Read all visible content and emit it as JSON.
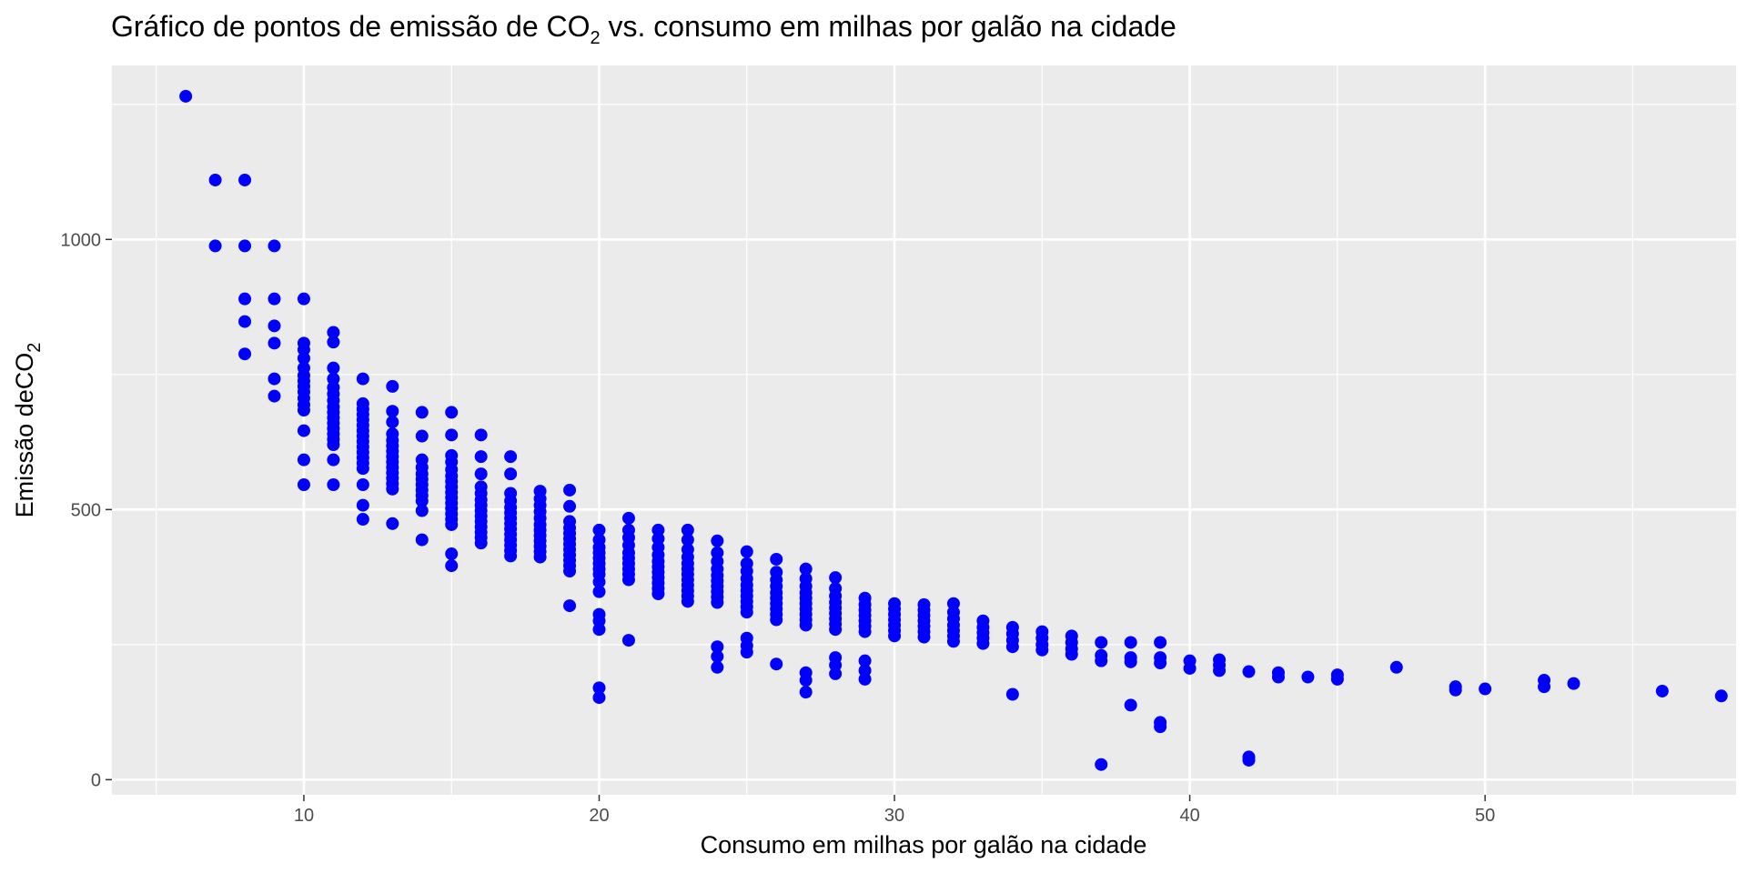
{
  "chart_data": {
    "type": "scatter",
    "title": {
      "prefix": "Gráfico de pontos de emissão de CO",
      "sub": "2",
      "suffix": " vs. consumo em milhas por galão na cidade"
    },
    "xlabel": "Consumo em milhas por galão na cidade",
    "ylabel": {
      "prefix": "Emissão deCO",
      "sub": "2"
    },
    "xlim": [
      3.5,
      58.5
    ],
    "ylim": [
      -28,
      1322
    ],
    "x_ticks": [
      10,
      20,
      30,
      40,
      50
    ],
    "y_ticks": [
      0,
      500,
      1000
    ],
    "grid": true,
    "point_color": "#0000ff",
    "panel_color": "#ebebeb",
    "grid_color": "#ffffff",
    "points": [
      [
        6,
        1265
      ],
      [
        7,
        1110
      ],
      [
        7,
        988
      ],
      [
        8,
        1110
      ],
      [
        8,
        988
      ],
      [
        8,
        890
      ],
      [
        8,
        848
      ],
      [
        8,
        788
      ],
      [
        9,
        988
      ],
      [
        9,
        890
      ],
      [
        9,
        840
      ],
      [
        9,
        808
      ],
      [
        9,
        742
      ],
      [
        9,
        710
      ],
      [
        10,
        890
      ],
      [
        10,
        808
      ],
      [
        10,
        796
      ],
      [
        10,
        780
      ],
      [
        10,
        762
      ],
      [
        10,
        748
      ],
      [
        10,
        738
      ],
      [
        10,
        728
      ],
      [
        10,
        718
      ],
      [
        10,
        706
      ],
      [
        10,
        694
      ],
      [
        10,
        684
      ],
      [
        10,
        646
      ],
      [
        10,
        592
      ],
      [
        10,
        546
      ],
      [
        11,
        828
      ],
      [
        11,
        810
      ],
      [
        11,
        762
      ],
      [
        11,
        742
      ],
      [
        11,
        726
      ],
      [
        11,
        714
      ],
      [
        11,
        702
      ],
      [
        11,
        690
      ],
      [
        11,
        680
      ],
      [
        11,
        670
      ],
      [
        11,
        660
      ],
      [
        11,
        650
      ],
      [
        11,
        640
      ],
      [
        11,
        630
      ],
      [
        11,
        620
      ],
      [
        11,
        592
      ],
      [
        11,
        546
      ],
      [
        12,
        742
      ],
      [
        12,
        696
      ],
      [
        12,
        686
      ],
      [
        12,
        676
      ],
      [
        12,
        666
      ],
      [
        12,
        656
      ],
      [
        12,
        646
      ],
      [
        12,
        636
      ],
      [
        12,
        626
      ],
      [
        12,
        616
      ],
      [
        12,
        606
      ],
      [
        12,
        596
      ],
      [
        12,
        586
      ],
      [
        12,
        576
      ],
      [
        12,
        546
      ],
      [
        12,
        508
      ],
      [
        12,
        482
      ],
      [
        13,
        728
      ],
      [
        13,
        682
      ],
      [
        13,
        662
      ],
      [
        13,
        640
      ],
      [
        13,
        628
      ],
      [
        13,
        618
      ],
      [
        13,
        608
      ],
      [
        13,
        598
      ],
      [
        13,
        588
      ],
      [
        13,
        578
      ],
      [
        13,
        568
      ],
      [
        13,
        558
      ],
      [
        13,
        548
      ],
      [
        13,
        538
      ],
      [
        13,
        474
      ],
      [
        14,
        680
      ],
      [
        14,
        636
      ],
      [
        14,
        592
      ],
      [
        14,
        578
      ],
      [
        14,
        566
      ],
      [
        14,
        556
      ],
      [
        14,
        546
      ],
      [
        14,
        536
      ],
      [
        14,
        526
      ],
      [
        14,
        516
      ],
      [
        14,
        498
      ],
      [
        14,
        444
      ],
      [
        15,
        680
      ],
      [
        15,
        638
      ],
      [
        15,
        600
      ],
      [
        15,
        588
      ],
      [
        15,
        574
      ],
      [
        15,
        562
      ],
      [
        15,
        552
      ],
      [
        15,
        542
      ],
      [
        15,
        532
      ],
      [
        15,
        522
      ],
      [
        15,
        512
      ],
      [
        15,
        502
      ],
      [
        15,
        492
      ],
      [
        15,
        482
      ],
      [
        15,
        472
      ],
      [
        15,
        418
      ],
      [
        15,
        396
      ],
      [
        16,
        638
      ],
      [
        16,
        598
      ],
      [
        16,
        566
      ],
      [
        16,
        542
      ],
      [
        16,
        530
      ],
      [
        16,
        518
      ],
      [
        16,
        508
      ],
      [
        16,
        498
      ],
      [
        16,
        488
      ],
      [
        16,
        478
      ],
      [
        16,
        468
      ],
      [
        16,
        458
      ],
      [
        16,
        448
      ],
      [
        16,
        438
      ],
      [
        17,
        598
      ],
      [
        17,
        566
      ],
      [
        17,
        530
      ],
      [
        17,
        516
      ],
      [
        17,
        504
      ],
      [
        17,
        494
      ],
      [
        17,
        484
      ],
      [
        17,
        474
      ],
      [
        17,
        464
      ],
      [
        17,
        454
      ],
      [
        17,
        444
      ],
      [
        17,
        434
      ],
      [
        17,
        424
      ],
      [
        17,
        414
      ],
      [
        18,
        534
      ],
      [
        18,
        520
      ],
      [
        18,
        508
      ],
      [
        18,
        496
      ],
      [
        18,
        484
      ],
      [
        18,
        472
      ],
      [
        18,
        462
      ],
      [
        18,
        452
      ],
      [
        18,
        442
      ],
      [
        18,
        432
      ],
      [
        18,
        422
      ],
      [
        18,
        412
      ],
      [
        19,
        536
      ],
      [
        19,
        506
      ],
      [
        19,
        478
      ],
      [
        19,
        466
      ],
      [
        19,
        456
      ],
      [
        19,
        446
      ],
      [
        19,
        436
      ],
      [
        19,
        426
      ],
      [
        19,
        416
      ],
      [
        19,
        406
      ],
      [
        19,
        396
      ],
      [
        19,
        386
      ],
      [
        19,
        322
      ],
      [
        20,
        462
      ],
      [
        20,
        444
      ],
      [
        20,
        430
      ],
      [
        20,
        420
      ],
      [
        20,
        410
      ],
      [
        20,
        400
      ],
      [
        20,
        390
      ],
      [
        20,
        380
      ],
      [
        20,
        366
      ],
      [
        20,
        348
      ],
      [
        20,
        306
      ],
      [
        20,
        294
      ],
      [
        20,
        278
      ],
      [
        20,
        170
      ],
      [
        20,
        152
      ],
      [
        21,
        484
      ],
      [
        21,
        462
      ],
      [
        21,
        448
      ],
      [
        21,
        434
      ],
      [
        21,
        420
      ],
      [
        21,
        410
      ],
      [
        21,
        400
      ],
      [
        21,
        390
      ],
      [
        21,
        380
      ],
      [
        21,
        370
      ],
      [
        21,
        258
      ],
      [
        22,
        462
      ],
      [
        22,
        446
      ],
      [
        22,
        430
      ],
      [
        22,
        416
      ],
      [
        22,
        404
      ],
      [
        22,
        394
      ],
      [
        22,
        384
      ],
      [
        22,
        374
      ],
      [
        22,
        364
      ],
      [
        22,
        354
      ],
      [
        22,
        344
      ],
      [
        23,
        462
      ],
      [
        23,
        444
      ],
      [
        23,
        426
      ],
      [
        23,
        412
      ],
      [
        23,
        400
      ],
      [
        23,
        390
      ],
      [
        23,
        380
      ],
      [
        23,
        370
      ],
      [
        23,
        360
      ],
      [
        23,
        350
      ],
      [
        23,
        340
      ],
      [
        23,
        330
      ],
      [
        24,
        442
      ],
      [
        24,
        420
      ],
      [
        24,
        404
      ],
      [
        24,
        390
      ],
      [
        24,
        378
      ],
      [
        24,
        368
      ],
      [
        24,
        358
      ],
      [
        24,
        348
      ],
      [
        24,
        338
      ],
      [
        24,
        328
      ],
      [
        24,
        246
      ],
      [
        24,
        228
      ],
      [
        24,
        208
      ],
      [
        25,
        422
      ],
      [
        25,
        400
      ],
      [
        25,
        386
      ],
      [
        25,
        372
      ],
      [
        25,
        360
      ],
      [
        25,
        350
      ],
      [
        25,
        340
      ],
      [
        25,
        330
      ],
      [
        25,
        320
      ],
      [
        25,
        310
      ],
      [
        25,
        262
      ],
      [
        25,
        248
      ],
      [
        25,
        236
      ],
      [
        26,
        408
      ],
      [
        26,
        384
      ],
      [
        26,
        370
      ],
      [
        26,
        358
      ],
      [
        26,
        346
      ],
      [
        26,
        336
      ],
      [
        26,
        326
      ],
      [
        26,
        316
      ],
      [
        26,
        306
      ],
      [
        26,
        296
      ],
      [
        26,
        214
      ],
      [
        27,
        390
      ],
      [
        27,
        372
      ],
      [
        27,
        358
      ],
      [
        27,
        346
      ],
      [
        27,
        336
      ],
      [
        27,
        326
      ],
      [
        27,
        316
      ],
      [
        27,
        306
      ],
      [
        27,
        296
      ],
      [
        27,
        286
      ],
      [
        27,
        198
      ],
      [
        27,
        184
      ],
      [
        27,
        162
      ],
      [
        28,
        374
      ],
      [
        28,
        354
      ],
      [
        28,
        340
      ],
      [
        28,
        328
      ],
      [
        28,
        318
      ],
      [
        28,
        308
      ],
      [
        28,
        298
      ],
      [
        28,
        288
      ],
      [
        28,
        278
      ],
      [
        28,
        226
      ],
      [
        28,
        212
      ],
      [
        28,
        196
      ],
      [
        29,
        336
      ],
      [
        29,
        324
      ],
      [
        29,
        314
      ],
      [
        29,
        304
      ],
      [
        29,
        294
      ],
      [
        29,
        284
      ],
      [
        29,
        274
      ],
      [
        29,
        220
      ],
      [
        29,
        202
      ],
      [
        29,
        186
      ],
      [
        30,
        326
      ],
      [
        30,
        316
      ],
      [
        30,
        306
      ],
      [
        30,
        296
      ],
      [
        30,
        286
      ],
      [
        30,
        276
      ],
      [
        30,
        266
      ],
      [
        31,
        324
      ],
      [
        31,
        314
      ],
      [
        31,
        304
      ],
      [
        31,
        294
      ],
      [
        31,
        284
      ],
      [
        31,
        274
      ],
      [
        31,
        264
      ],
      [
        32,
        326
      ],
      [
        32,
        310
      ],
      [
        32,
        298
      ],
      [
        32,
        286
      ],
      [
        32,
        276
      ],
      [
        32,
        266
      ],
      [
        32,
        256
      ],
      [
        33,
        294
      ],
      [
        33,
        282
      ],
      [
        33,
        272
      ],
      [
        33,
        262
      ],
      [
        33,
        252
      ],
      [
        34,
        282
      ],
      [
        34,
        270
      ],
      [
        34,
        258
      ],
      [
        34,
        246
      ],
      [
        34,
        158
      ],
      [
        35,
        274
      ],
      [
        35,
        262
      ],
      [
        35,
        250
      ],
      [
        35,
        240
      ],
      [
        36,
        266
      ],
      [
        36,
        254
      ],
      [
        36,
        242
      ],
      [
        36,
        232
      ],
      [
        37,
        254
      ],
      [
        37,
        230
      ],
      [
        37,
        220
      ],
      [
        37,
        28
      ],
      [
        38,
        254
      ],
      [
        38,
        226
      ],
      [
        38,
        218
      ],
      [
        38,
        138
      ],
      [
        39,
        254
      ],
      [
        39,
        226
      ],
      [
        39,
        216
      ],
      [
        39,
        106
      ],
      [
        39,
        98
      ],
      [
        40,
        220
      ],
      [
        40,
        206
      ],
      [
        41,
        222
      ],
      [
        41,
        212
      ],
      [
        41,
        202
      ],
      [
        42,
        200
      ],
      [
        42,
        42
      ],
      [
        42,
        36
      ],
      [
        43,
        198
      ],
      [
        43,
        190
      ],
      [
        44,
        190
      ],
      [
        45,
        194
      ],
      [
        45,
        186
      ],
      [
        47,
        208
      ],
      [
        49,
        172
      ],
      [
        49,
        166
      ],
      [
        50,
        168
      ],
      [
        52,
        184
      ],
      [
        52,
        172
      ],
      [
        53,
        178
      ],
      [
        56,
        164
      ],
      [
        58,
        155
      ]
    ]
  }
}
